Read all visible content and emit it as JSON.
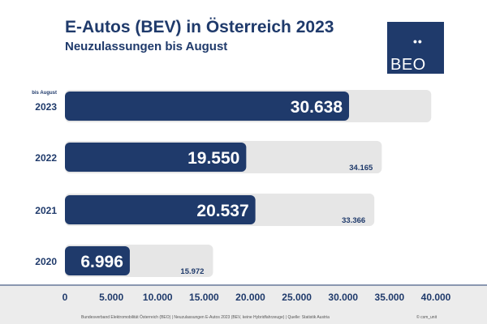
{
  "header": {
    "title": "E-Autos (BEV) in Österreich 2023",
    "subtitle": "Neuzulassungen bis August"
  },
  "logo": {
    "dots": "••",
    "text": "BEO"
  },
  "colors": {
    "title": "#1f3a6b",
    "bar": "#1f3a6b",
    "background_bar": "#e6e6e6",
    "axis_strip": "#ececec"
  },
  "chart_data": {
    "type": "bar",
    "orientation": "horizontal",
    "categories": [
      "2023",
      "2022",
      "2021",
      "2020"
    ],
    "category_note": {
      "2023": "bis August"
    },
    "series": [
      {
        "values": [
          30638,
          19550,
          20537,
          6996
        ],
        "labels": [
          "30.638",
          "19.550",
          "20.537",
          "6.996"
        ]
      },
      {
        "values": [
          39500,
          34165,
          33366,
          15972
        ],
        "labels": [
          "",
          "34.165",
          "33.366",
          "15.972"
        ]
      }
    ],
    "xlim": [
      0,
      40000
    ],
    "xticks": [
      0,
      5000,
      10000,
      15000,
      20000,
      25000,
      30000,
      35000,
      40000
    ],
    "xtick_labels": [
      "0",
      "5.000",
      "10.000",
      "15.000",
      "20.000",
      "25.000",
      "30.000",
      "35.000",
      "40.000"
    ],
    "grid": false,
    "legend": "none"
  },
  "footer": {
    "source": "Bundesverband Elektromobilität Österreich (BEO) | Neuzulassungen E-Autos 2023 (BEV, keine Hybridfahrzeuge) | Quelle: Statistik Austria",
    "credit": "© csm_unit"
  }
}
